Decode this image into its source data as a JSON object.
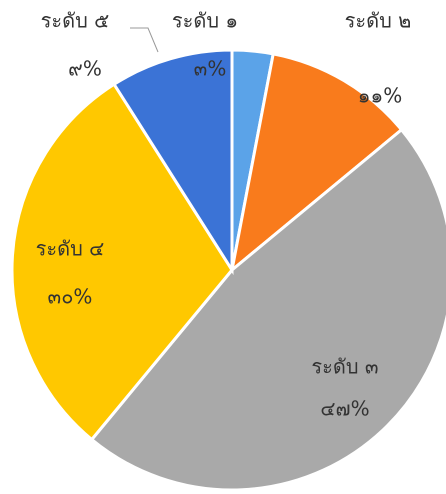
{
  "chart_data": {
    "type": "pie",
    "categories": [
      "ระดับ ๑",
      "ระดับ ๒",
      "ระดับ ๓",
      "ระดับ ๔",
      "ระดับ ๕"
    ],
    "values": [
      3,
      11,
      47,
      30,
      9
    ],
    "value_labels": [
      "๓%",
      "๑๑%",
      "๔๗%",
      "๓๐%",
      "๙%"
    ],
    "colors": [
      "#5ba3e8",
      "#f97b1c",
      "#a9a9a9",
      "#ffc800",
      "#3b73d6"
    ]
  }
}
